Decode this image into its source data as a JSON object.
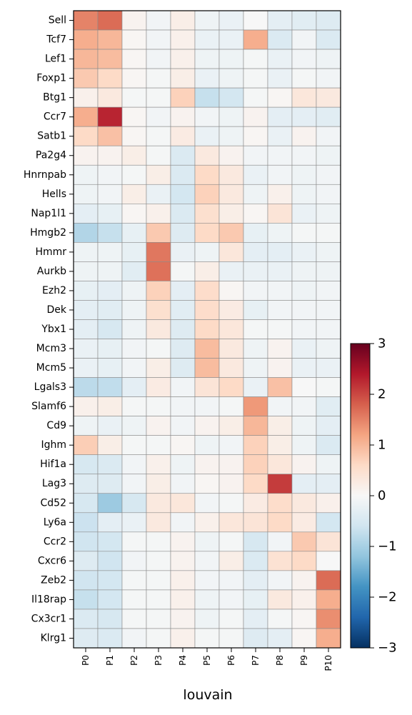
{
  "chart_data": {
    "type": "heatmap",
    "title": "",
    "xlabel": "louvain",
    "ylabel": "",
    "x_categories": [
      "P0",
      "P1",
      "P2",
      "P3",
      "P4",
      "P5",
      "P6",
      "P7",
      "P8",
      "P9",
      "P10"
    ],
    "y_categories": [
      "Sell",
      "Tcf7",
      "Lef1",
      "Foxp1",
      "Btg1",
      "Ccr7",
      "Satb1",
      "Pa2g4",
      "Hnrnpab",
      "Hells",
      "Nap1l1",
      "Hmgb2",
      "Hmmr",
      "Aurkb",
      "Ezh2",
      "Dek",
      "Ybx1",
      "Mcm3",
      "Mcm5",
      "Lgals3",
      "Slamf6",
      "Cd9",
      "Ighm",
      "Hif1a",
      "Lag3",
      "Cd52",
      "Ly6a",
      "Ccr2",
      "Cxcr6",
      "Zeb2",
      "Il18rap",
      "Cx3cr1",
      "Klrg1"
    ],
    "values": [
      [
        1.5,
        1.7,
        0.1,
        -0.1,
        0.2,
        -0.15,
        -0.2,
        0.0,
        -0.3,
        -0.35,
        -0.4
      ],
      [
        1.1,
        1.0,
        0.05,
        -0.1,
        0.15,
        -0.2,
        -0.2,
        1.1,
        -0.45,
        -0.1,
        -0.45
      ],
      [
        1.0,
        0.95,
        0.05,
        -0.1,
        0.15,
        -0.15,
        -0.15,
        -0.05,
        -0.2,
        -0.1,
        -0.15
      ],
      [
        0.8,
        0.6,
        0.05,
        -0.05,
        0.2,
        -0.2,
        -0.15,
        -0.05,
        -0.2,
        -0.05,
        -0.1
      ],
      [
        0.15,
        0.3,
        -0.05,
        -0.05,
        0.7,
        -0.7,
        -0.55,
        -0.05,
        0.05,
        0.35,
        0.3
      ],
      [
        1.1,
        2.3,
        0.05,
        -0.1,
        0.1,
        -0.1,
        -0.15,
        0.1,
        -0.3,
        -0.3,
        -0.35
      ],
      [
        0.6,
        0.9,
        0.05,
        -0.05,
        0.25,
        -0.2,
        -0.15,
        0.05,
        -0.2,
        0.1,
        -0.1
      ],
      [
        0.1,
        0.1,
        0.2,
        -0.05,
        -0.45,
        0.3,
        0.1,
        -0.1,
        -0.1,
        -0.1,
        -0.15
      ],
      [
        -0.15,
        -0.1,
        -0.05,
        0.2,
        -0.45,
        0.6,
        0.3,
        -0.2,
        -0.1,
        -0.15,
        -0.1
      ],
      [
        -0.15,
        -0.1,
        0.2,
        -0.2,
        -0.55,
        0.7,
        0.3,
        -0.15,
        0.15,
        -0.15,
        -0.1
      ],
      [
        -0.3,
        -0.25,
        0.05,
        0.15,
        -0.45,
        0.5,
        0.2,
        0.05,
        0.4,
        -0.2,
        -0.15
      ],
      [
        -0.9,
        -0.7,
        -0.25,
        0.8,
        -0.4,
        0.6,
        0.8,
        -0.25,
        -0.15,
        -0.05,
        -0.05
      ],
      [
        -0.15,
        -0.15,
        -0.25,
        1.6,
        -0.2,
        -0.15,
        0.35,
        -0.3,
        -0.3,
        -0.2,
        -0.15
      ],
      [
        -0.15,
        -0.15,
        -0.35,
        1.65,
        -0.05,
        0.2,
        -0.2,
        -0.2,
        -0.2,
        -0.15,
        -0.15
      ],
      [
        -0.25,
        -0.3,
        -0.15,
        0.7,
        -0.3,
        0.55,
        0.05,
        -0.1,
        -0.1,
        -0.15,
        -0.1
      ],
      [
        -0.3,
        -0.35,
        -0.15,
        0.5,
        -0.35,
        0.55,
        0.25,
        -0.25,
        -0.1,
        -0.1,
        -0.1
      ],
      [
        -0.3,
        -0.5,
        -0.15,
        0.3,
        -0.4,
        0.6,
        0.35,
        -0.05,
        -0.05,
        -0.1,
        -0.1
      ],
      [
        -0.2,
        -0.25,
        -0.1,
        -0.05,
        -0.4,
        0.95,
        0.3,
        -0.15,
        0.1,
        -0.2,
        -0.15
      ],
      [
        -0.2,
        -0.25,
        -0.1,
        0.2,
        -0.4,
        0.95,
        0.3,
        -0.15,
        0.1,
        -0.2,
        -0.2
      ],
      [
        -0.8,
        -0.75,
        -0.3,
        0.25,
        -0.1,
        0.4,
        0.6,
        -0.2,
        0.9,
        0.0,
        -0.05
      ],
      [
        0.15,
        0.2,
        -0.05,
        -0.05,
        -0.1,
        -0.1,
        -0.05,
        1.3,
        -0.1,
        -0.1,
        -0.35
      ],
      [
        -0.15,
        -0.2,
        -0.15,
        0.1,
        -0.1,
        0.1,
        0.2,
        1.0,
        0.2,
        -0.15,
        -0.3
      ],
      [
        0.75,
        0.2,
        -0.05,
        -0.05,
        0.05,
        -0.15,
        -0.1,
        0.7,
        0.2,
        -0.15,
        -0.45
      ],
      [
        -0.5,
        -0.45,
        -0.1,
        0.15,
        -0.15,
        0.1,
        0.1,
        0.7,
        0.35,
        0.1,
        -0.15
      ],
      [
        -0.4,
        -0.4,
        -0.1,
        0.2,
        -0.1,
        0.05,
        0.1,
        0.6,
        2.1,
        -0.3,
        -0.3
      ],
      [
        -0.5,
        -1.1,
        -0.5,
        0.3,
        0.35,
        -0.1,
        -0.05,
        0.25,
        0.55,
        0.3,
        0.15
      ],
      [
        -0.65,
        -0.3,
        -0.2,
        0.3,
        -0.1,
        0.15,
        0.35,
        0.4,
        0.6,
        0.25,
        -0.55
      ],
      [
        -0.6,
        -0.55,
        -0.05,
        -0.05,
        0.1,
        -0.15,
        -0.05,
        -0.5,
        -0.1,
        0.8,
        0.4
      ],
      [
        -0.4,
        -0.6,
        -0.1,
        -0.05,
        0.1,
        -0.1,
        0.2,
        -0.45,
        0.45,
        0.6,
        0.0
      ],
      [
        -0.6,
        -0.55,
        -0.05,
        -0.05,
        0.15,
        -0.1,
        -0.1,
        -0.3,
        -0.1,
        0.1,
        1.7
      ],
      [
        -0.7,
        -0.55,
        -0.05,
        -0.05,
        0.15,
        -0.15,
        -0.1,
        -0.25,
        0.3,
        0.15,
        1.1
      ],
      [
        -0.45,
        -0.5,
        -0.05,
        -0.05,
        0.1,
        -0.15,
        -0.05,
        -0.3,
        -0.05,
        0.05,
        1.4
      ],
      [
        -0.4,
        -0.45,
        -0.1,
        -0.05,
        0.15,
        -0.05,
        -0.05,
        -0.4,
        -0.3,
        0.05,
        1.1
      ]
    ],
    "colormap": "RdBu_r",
    "vmin": -3,
    "vmax": 3,
    "colorbar_ticks": [
      "3",
      "2",
      "1",
      "0",
      "−1",
      "−2",
      "−3"
    ],
    "colorbar_tick_values": [
      3,
      2,
      1,
      0,
      -1,
      -2,
      -3
    ],
    "grid": true,
    "grid_color": "#8a8a8a"
  }
}
